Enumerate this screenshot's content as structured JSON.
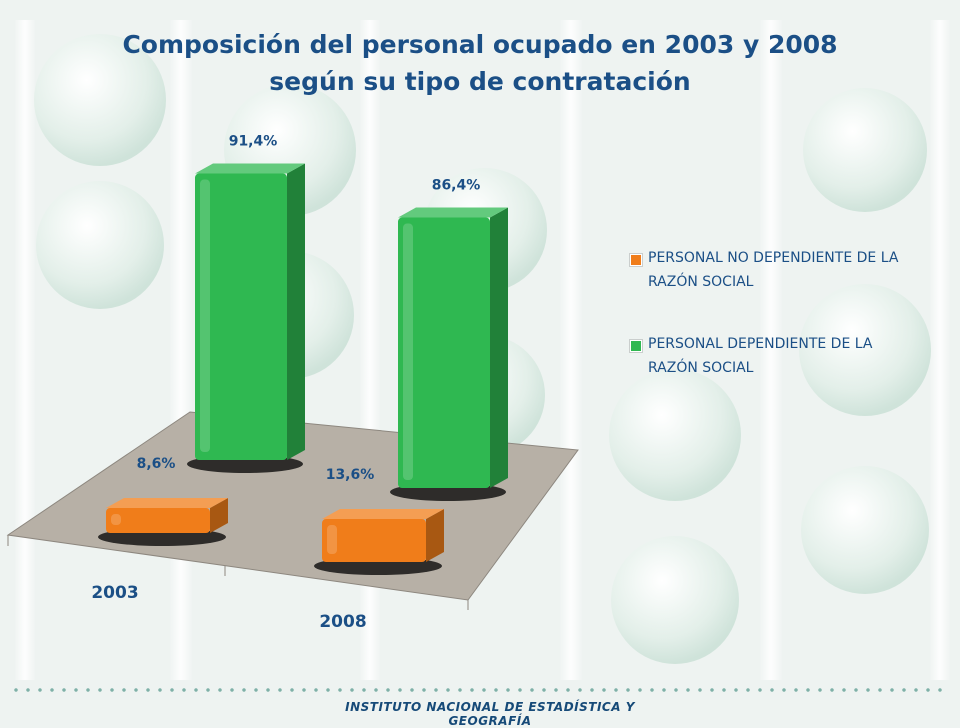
{
  "chart_data": {
    "type": "bar",
    "title": "Composición del personal ocupado en 2003 y 2008",
    "subtitle": "según su tipo de contratación",
    "categories": [
      "2003",
      "2008"
    ],
    "series": [
      {
        "name": "PERSONAL NO DEPENDIENTE DE LA RAZÓN SOCIAL",
        "values": [
          8.6,
          13.6
        ],
        "labels": [
          "8,6%",
          "13,6%"
        ],
        "color": "#f07d1a"
      },
      {
        "name": "PERSONAL DEPENDIENTE DE LA RAZÓN SOCIAL",
        "values": [
          91.4,
          86.4
        ],
        "labels": [
          "91,4%",
          "86,4%"
        ],
        "color": "#2fb851"
      }
    ],
    "ylim": [
      0,
      100
    ],
    "legend": "right",
    "three_d": true
  },
  "legend": {
    "items": [
      {
        "label": "PERSONAL NO DEPENDIENTE DE LA RAZÓN SOCIAL",
        "color": "#f07d1a"
      },
      {
        "label": "PERSONAL DEPENDIENTE DE LA RAZÓN SOCIAL",
        "color": "#2fb851"
      }
    ]
  },
  "footer": {
    "text": "INSTITUTO NACIONAL DE ESTADÍSTICA Y GEOGRAFÍA"
  },
  "colors": {
    "title": "#1b4f86",
    "floor": "#b7b0a6"
  }
}
